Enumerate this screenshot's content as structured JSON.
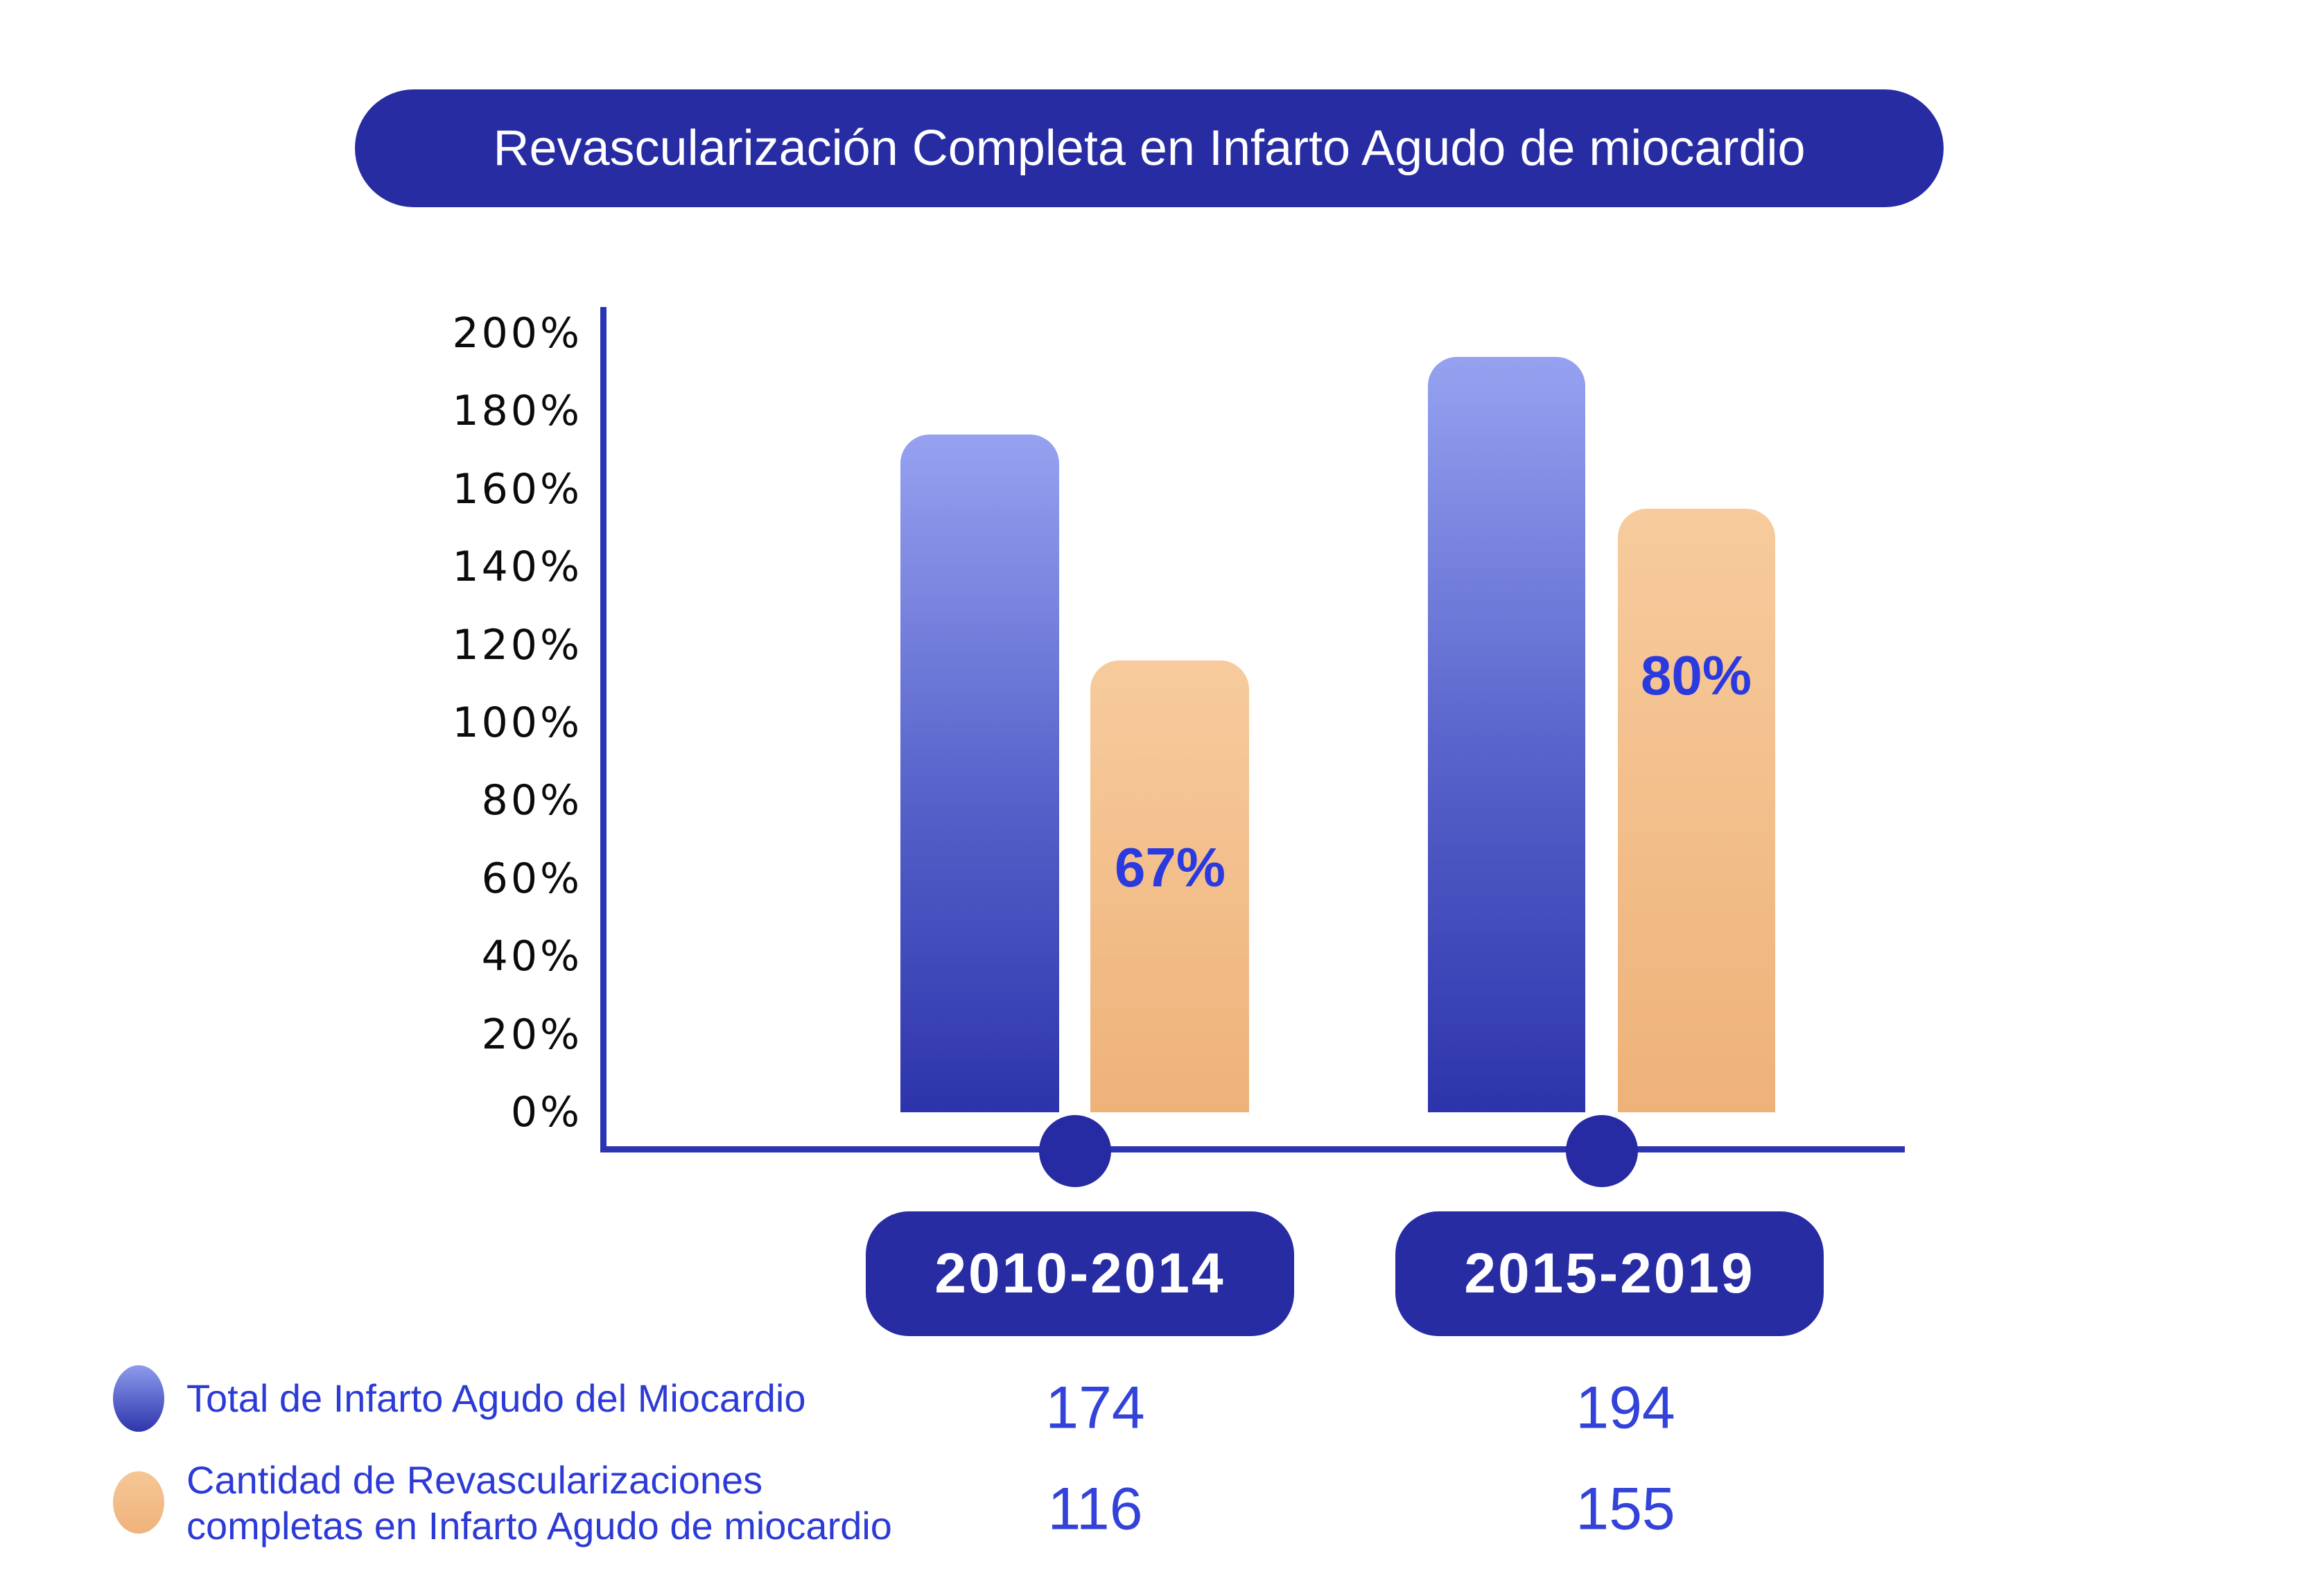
{
  "chart_data": {
    "type": "bar",
    "title": "Revascularización Completa en Infarto Agudo de miocardio",
    "categories": [
      "2010-2014",
      "2015-2019"
    ],
    "series": [
      {
        "name": "Total de Infarto Agudo del Miocardio",
        "values": [
          174,
          194
        ],
        "color_top": "#96A2F0",
        "color_bottom": "#2D34AB"
      },
      {
        "name": "Cantidad de Revascularizaciones completas en Infarto Agudo de miocardio",
        "values": [
          116,
          155
        ],
        "color_top": "#F7CB9D",
        "color_bottom": "#EEB279"
      }
    ],
    "bar_value_labels": [
      "67%",
      "80%"
    ],
    "y_ticks": [
      "0%",
      "20%",
      "40%",
      "60%",
      "80%",
      "100%",
      "120%",
      "140%",
      "160%",
      "180%",
      "200%"
    ],
    "ylim": [
      0,
      200
    ],
    "grid": false,
    "legend_position": "bottom-left"
  },
  "legend": {
    "items": [
      {
        "marker": "blue-oval",
        "lines": [
          "Total de Infarto Agudo del Miocardio"
        ]
      },
      {
        "marker": "orange-oval",
        "lines": [
          "Cantidad de Revascularizaciones",
          "completas en Infarto Agudo de miocardio"
        ]
      }
    ]
  },
  "colors": {
    "dark_blue_pill": "#272CA3",
    "axis_blue": "#2B35B2",
    "text_blue": "#2D3BD6",
    "value_label_blue": "#2B3ADF",
    "bar_blue_top": "#96A2F0",
    "bar_blue_bottom": "#2D34AB",
    "bar_orange_top": "#F7CB9D",
    "bar_orange_bottom": "#EEB279",
    "tick_text": "#0B0B0B",
    "background": "#FFFFFF"
  }
}
